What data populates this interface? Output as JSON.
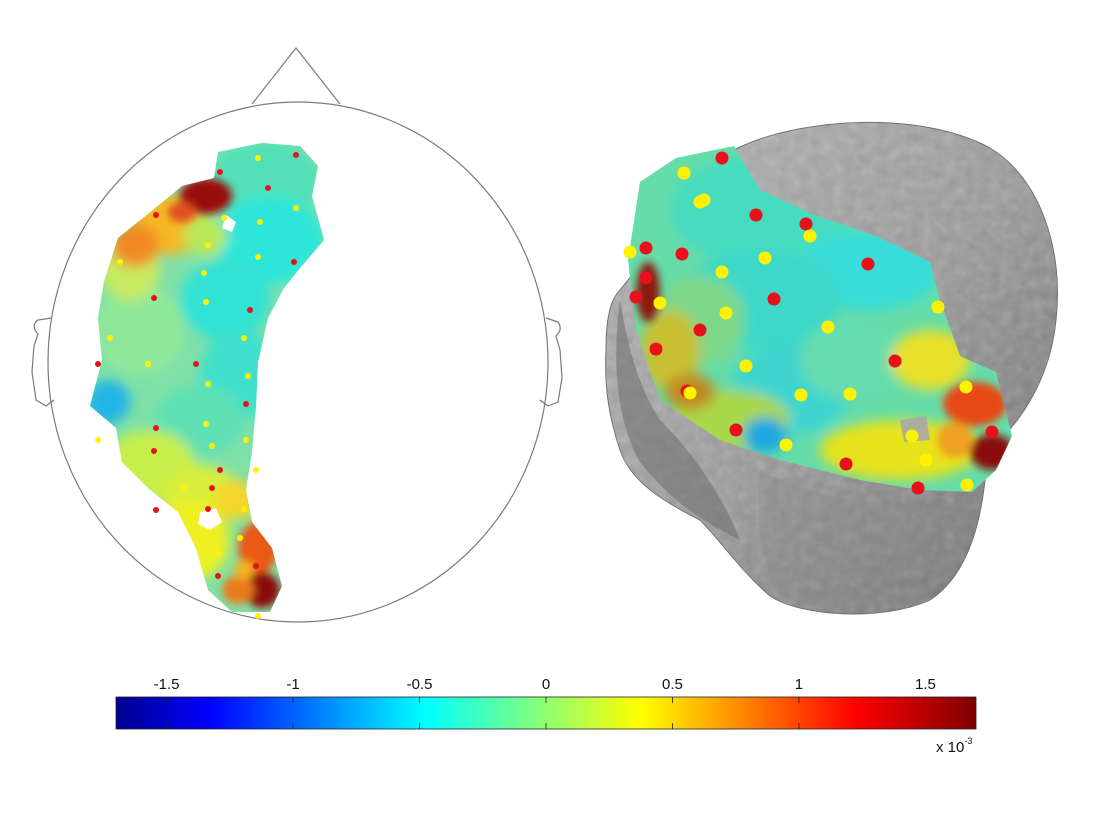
{
  "colorbar": {
    "ticks": [
      {
        "value": -1.5,
        "label": "-1.5"
      },
      {
        "value": -1,
        "label": "-1"
      },
      {
        "value": -0.5,
        "label": "-0.5"
      },
      {
        "value": 0,
        "label": "0"
      },
      {
        "value": 0.5,
        "label": "0.5"
      },
      {
        "value": 1,
        "label": "1"
      },
      {
        "value": 1.5,
        "label": "1.5"
      }
    ],
    "range": [
      -1.7,
      1.7
    ],
    "colormap": "jet",
    "exponent_base": "x 10",
    "exponent_power": "-3"
  },
  "electrode_colors": {
    "red": "#e8101a",
    "yellow": "#fff200"
  },
  "head_colors": {
    "outline": "#7a7a7a",
    "mesh": "#9a9a9a",
    "mesh_shadow": "#6e6e6e"
  }
}
